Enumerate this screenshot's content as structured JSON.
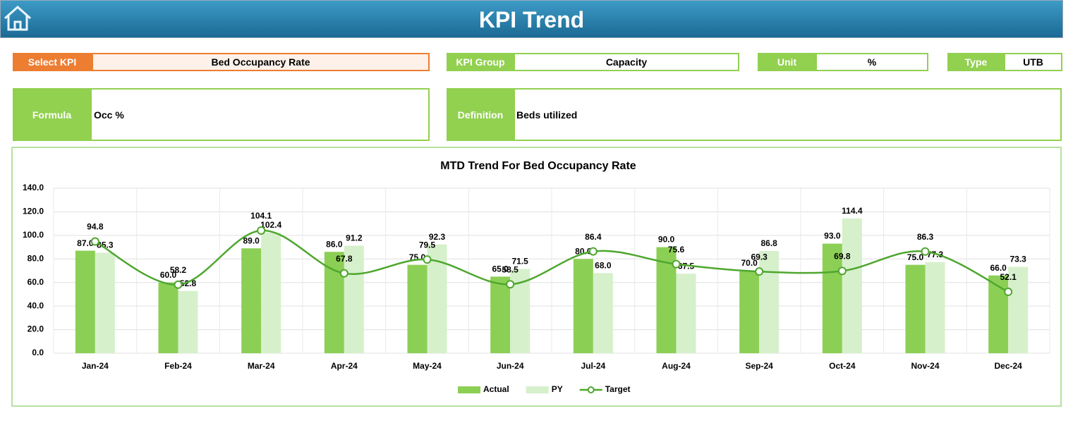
{
  "header": {
    "title": "KPI Trend"
  },
  "fields": {
    "select_kpi": {
      "label": "Select KPI",
      "value": "Bed Occupancy Rate"
    },
    "kpi_group": {
      "label": "KPI Group",
      "value": "Capacity"
    },
    "unit": {
      "label": "Unit",
      "value": "%"
    },
    "type": {
      "label": "Type",
      "value": "UTB"
    },
    "formula": {
      "label": "Formula",
      "value": "Occ %"
    },
    "definition": {
      "label": "Definition",
      "value": "Beds utilized"
    }
  },
  "chart_data": {
    "type": "bar",
    "title": "MTD Trend For Bed Occupancy Rate",
    "categories": [
      "Jan-24",
      "Feb-24",
      "Mar-24",
      "Apr-24",
      "May-24",
      "Jun-24",
      "Jul-24",
      "Aug-24",
      "Sep-24",
      "Oct-24",
      "Nov-24",
      "Dec-24"
    ],
    "series": [
      {
        "name": "Actual",
        "color": "#8ccf55",
        "values": [
          87.0,
          60.0,
          89.0,
          86.0,
          75.0,
          65.0,
          80.0,
          90.0,
          70.0,
          93.0,
          75.0,
          66.0
        ],
        "value_labels": [
          "87.0",
          "60.0",
          "89.0",
          "86.0",
          "75.0",
          "65.0",
          "80.0",
          "90.0",
          "70.0",
          "93.0",
          "75.0",
          "66.0"
        ]
      },
      {
        "name": "PY",
        "color": "#d6f0cb",
        "values": [
          85.3,
          52.8,
          102.4,
          91.2,
          92.3,
          71.5,
          68.0,
          67.5,
          86.8,
          114.4,
          77.3,
          73.3
        ],
        "value_labels": [
          "85.3",
          "52.8",
          "102.4",
          "91.2",
          "92.3",
          "71.5",
          "68.0",
          "67.5",
          "86.8",
          "114.4",
          "77.3",
          "73.3"
        ]
      },
      {
        "name": "Target",
        "type": "line",
        "color": "#4ea72e",
        "values": [
          94.8,
          58.2,
          104.1,
          67.8,
          79.5,
          58.5,
          86.4,
          75.6,
          69.3,
          69.8,
          86.3,
          52.1
        ],
        "value_labels": [
          "94.8",
          "58.2",
          "104.1",
          "67.8",
          "79.5",
          "58.5",
          "86.4",
          "75.6",
          "69.3",
          "69.8",
          "86.3",
          "52.1"
        ]
      }
    ],
    "ylim": [
      0,
      140
    ],
    "yticks": [
      {
        "value": 0,
        "label": "0.0"
      },
      {
        "value": 20,
        "label": "20.0"
      },
      {
        "value": 40,
        "label": "40.0"
      },
      {
        "value": 60,
        "label": "60.0"
      },
      {
        "value": 80,
        "label": "80.0"
      },
      {
        "value": 100,
        "label": "100.0"
      },
      {
        "value": 120,
        "label": "120.0"
      },
      {
        "value": 140,
        "label": "140.0"
      }
    ],
    "grid": true,
    "legend": "bottom"
  }
}
